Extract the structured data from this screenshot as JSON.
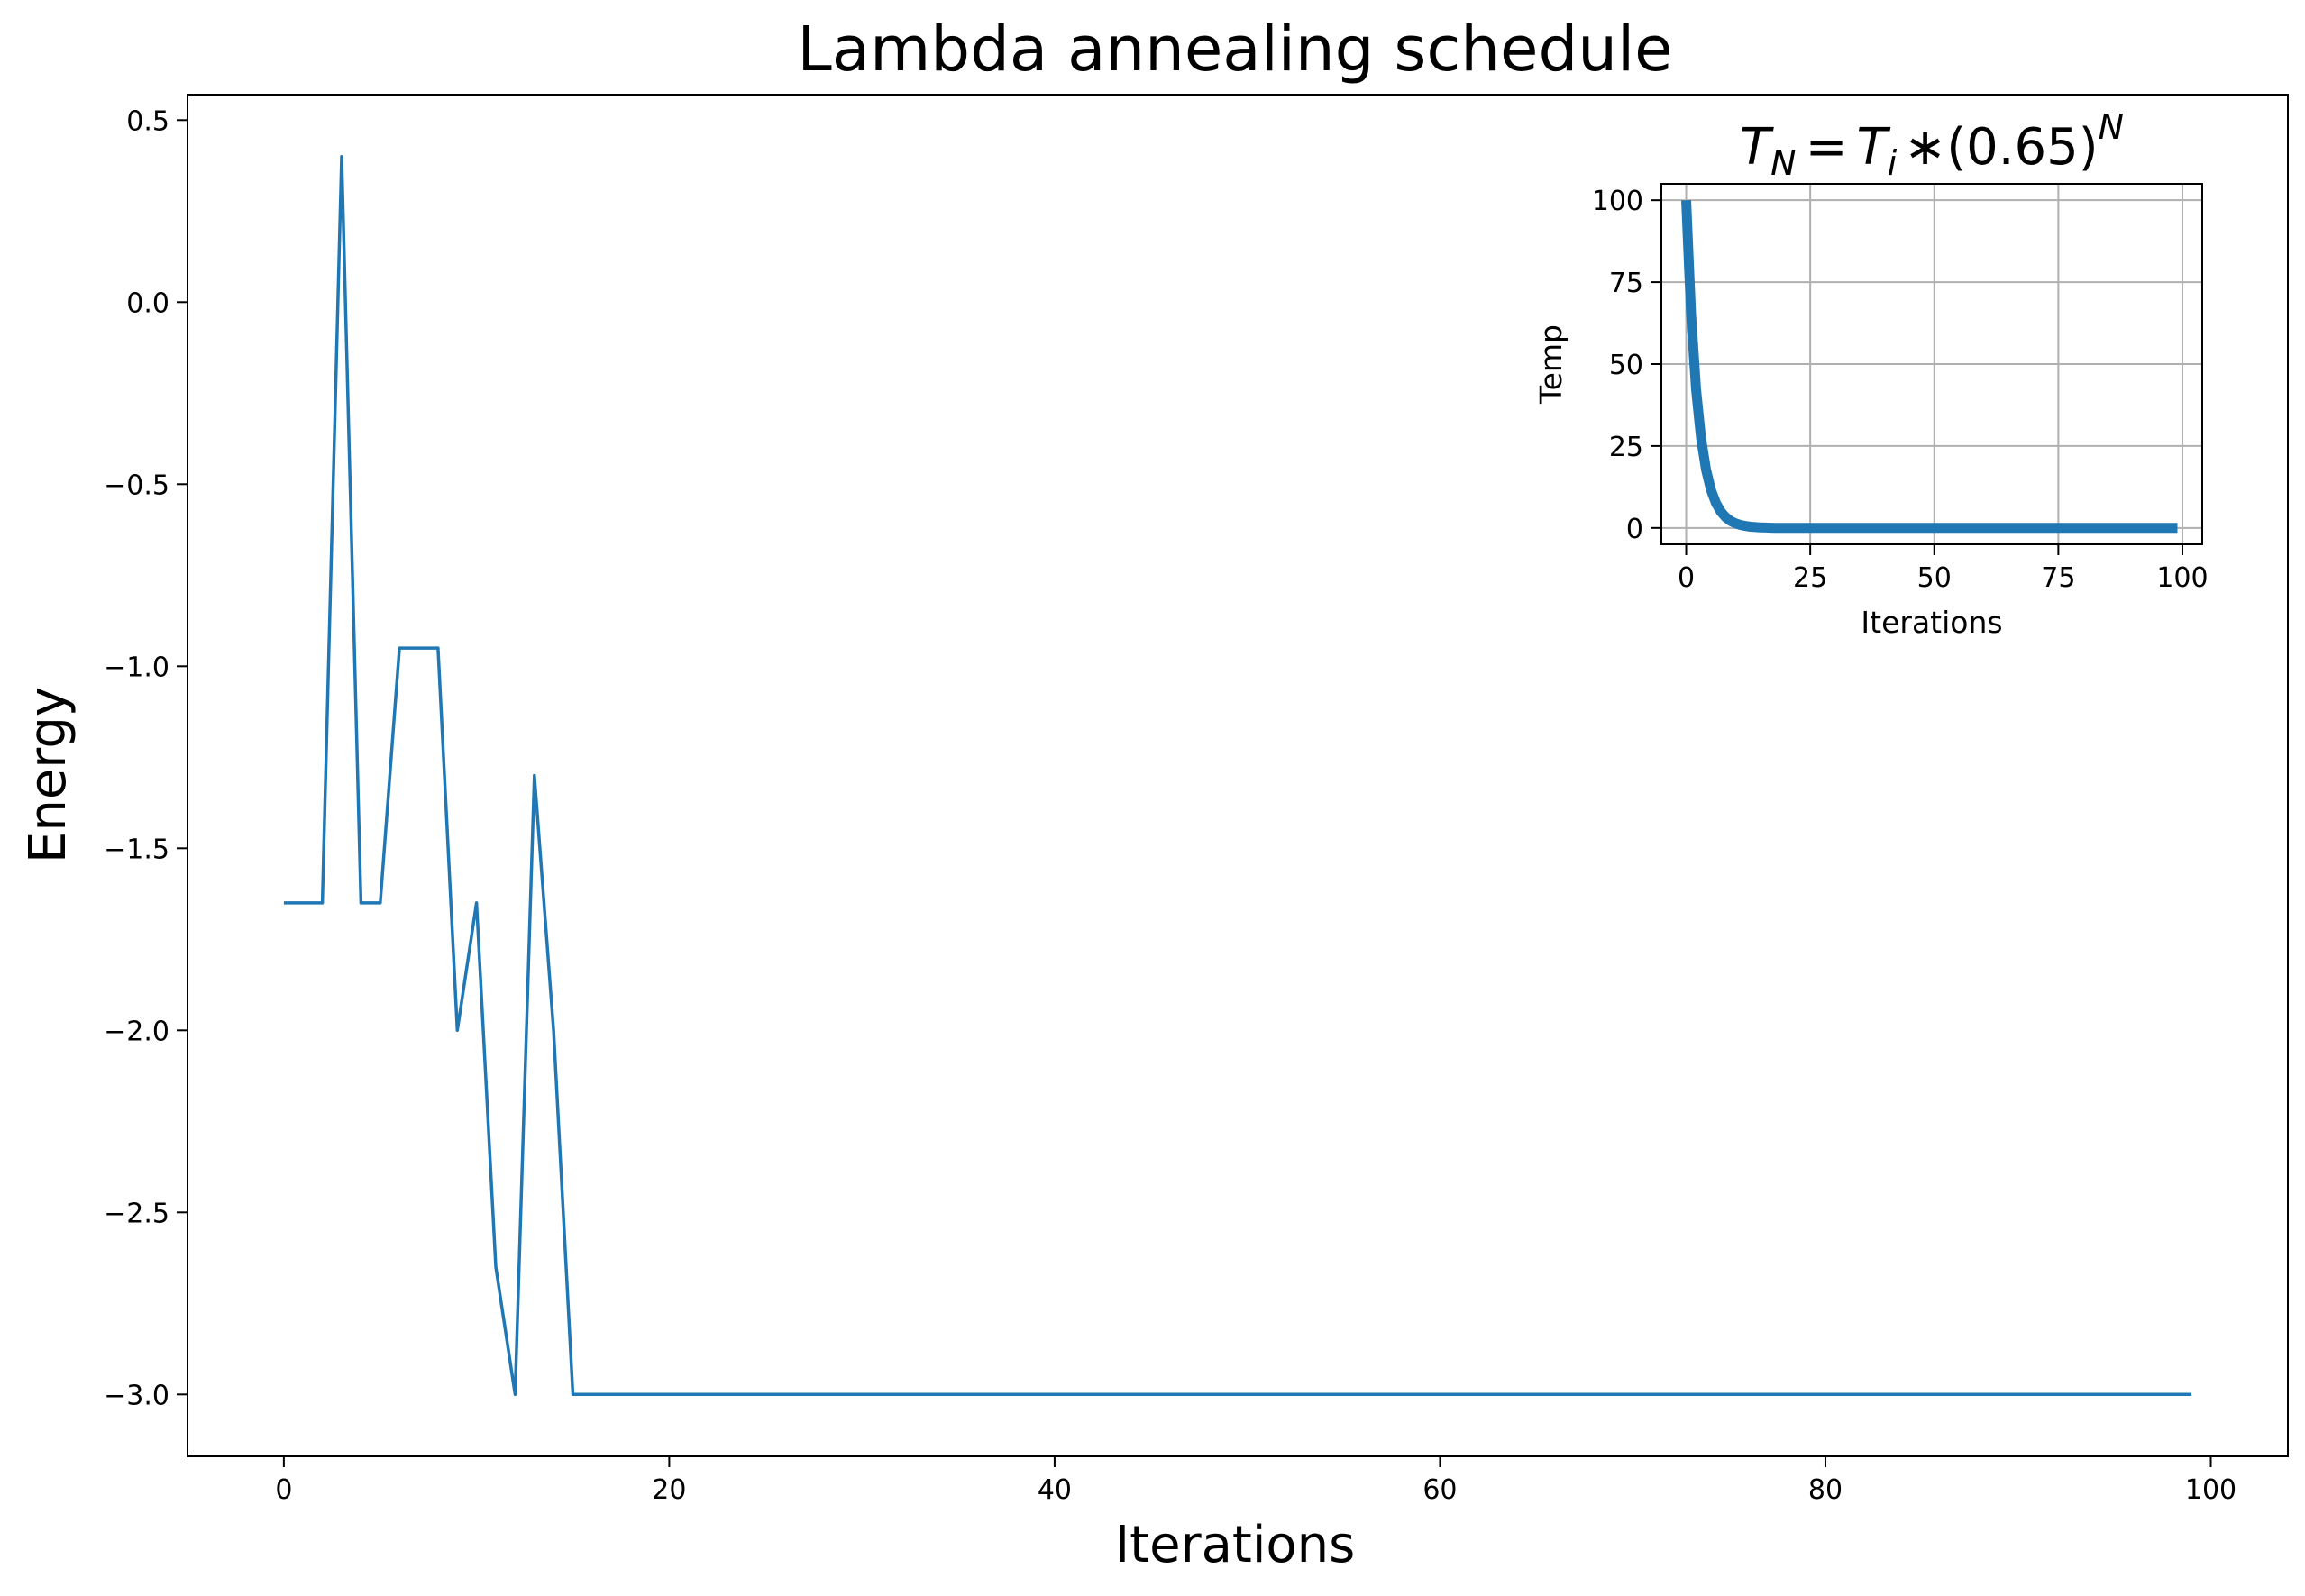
{
  "chart_data": [
    {
      "type": "line",
      "title": "Lambda annealing schedule",
      "xlabel": "Iterations",
      "ylabel": "Energy",
      "xlim": [
        -5,
        104
      ],
      "ylim": [
        -3.17,
        0.57
      ],
      "xticks": [
        0,
        20,
        40,
        60,
        80,
        100
      ],
      "xtick_labels": [
        "0",
        "20",
        "40",
        "60",
        "80",
        "100"
      ],
      "yticks": [
        0.5,
        0.0,
        -0.5,
        -1.0,
        -1.5,
        -2.0,
        -2.5,
        -3.0
      ],
      "ytick_labels": [
        "0.5",
        "0.0",
        "−0.5",
        "−1.0",
        "−1.5",
        "−2.0",
        "−2.5",
        "−3.0"
      ],
      "grid": false,
      "color": "#1f77b4",
      "series": [
        {
          "x": [
            0,
            1,
            2,
            3,
            4,
            5,
            6,
            7,
            8,
            9,
            10,
            11,
            12,
            13,
            14,
            15,
            99
          ],
          "y": [
            -1.65,
            -1.65,
            -1.65,
            0.4,
            -1.65,
            -1.65,
            -0.95,
            -0.95,
            -0.95,
            -2.0,
            -1.65,
            -2.65,
            -3.0,
            -1.3,
            -2.0,
            -3.0,
            -3.0
          ]
        }
      ]
    },
    {
      "type": "line",
      "title_parts": {
        "T": "T",
        "N": "N",
        "eq": "=",
        "Ti": "T",
        "i": "i",
        "rest": "∗(0.65)",
        "sup": "N"
      },
      "xlabel": "Iterations",
      "ylabel": "Temp",
      "xlim": [
        -5,
        104
      ],
      "ylim": [
        -5,
        105
      ],
      "xticks": [
        0,
        25,
        50,
        75,
        100
      ],
      "xtick_labels": [
        "0",
        "25",
        "50",
        "75",
        "100"
      ],
      "yticks": [
        0,
        25,
        50,
        75,
        100
      ],
      "ytick_labels": [
        "0",
        "25",
        "50",
        "75",
        "100"
      ],
      "grid": true,
      "color": "#1f77b4",
      "series": [
        {
          "formula": "T_N = 100 * 0.65^N",
          "T_initial": 100,
          "rate": 0.65,
          "x_range": [
            0,
            99
          ]
        }
      ]
    }
  ]
}
